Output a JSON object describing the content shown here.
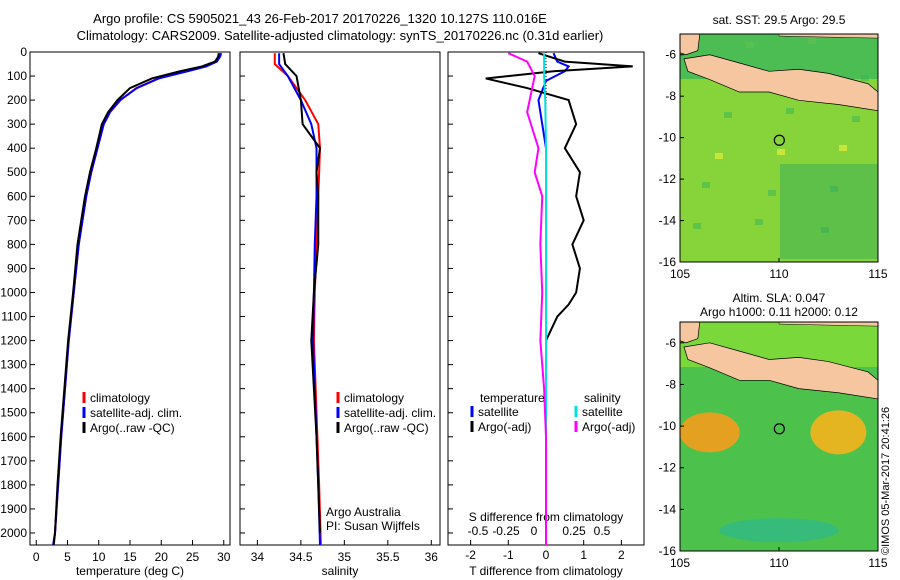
{
  "header": {
    "title_line1": "Argo profile: CS 5905021_43 26-Feb-2017 20170226_1320 10.127S 110.016E",
    "title_line2": "Climatology: CARS2009. Satellite-adjusted climatology: synTS_20170226.nc (0.31d earlier)"
  },
  "copyright": "©IMOS 05-Mar-2017 20:41:26",
  "colors": {
    "climatology": "#ff0000",
    "satellite": "#0000ff",
    "argo": "#000000",
    "sat_salinity": "#00e0e0",
    "argo_salinity": "#ff00ff",
    "land": "#f5c6a0"
  },
  "chart_data": [
    {
      "type": "line",
      "panel": "temperature",
      "xlabel": "temperature (deg C)",
      "ylabel": "",
      "xlim": [
        -1,
        31
      ],
      "ylim": [
        2050,
        0
      ],
      "xticks": [
        0,
        5,
        10,
        15,
        20,
        25,
        30
      ],
      "yticks": [
        0,
        100,
        200,
        300,
        400,
        500,
        600,
        700,
        800,
        900,
        1000,
        1100,
        1200,
        1300,
        1400,
        1500,
        1600,
        1700,
        1800,
        1900,
        2000
      ],
      "legend": [
        "climatology",
        "satellite-adj. clim.",
        "Argo(..raw -QC)"
      ],
      "legend_position": "lower-right",
      "series": [
        {
          "name": "climatology",
          "points": [
            [
              29.4,
              5
            ],
            [
              29.3,
              20
            ],
            [
              28.8,
              40
            ],
            [
              27.0,
              60
            ],
            [
              24.0,
              80
            ],
            [
              19.5,
              110
            ],
            [
              16.0,
              150
            ],
            [
              13.5,
              200
            ],
            [
              11.8,
              250
            ],
            [
              10.8,
              300
            ],
            [
              9.8,
              400
            ],
            [
              8.8,
              500
            ],
            [
              8.0,
              600
            ],
            [
              7.4,
              700
            ],
            [
              6.8,
              800
            ],
            [
              6.0,
              1000
            ],
            [
              5.2,
              1200
            ],
            [
              4.6,
              1400
            ],
            [
              4.0,
              1600
            ],
            [
              3.5,
              1800
            ],
            [
              3.0,
              2000
            ],
            [
              2.7,
              2050
            ]
          ]
        },
        {
          "name": "satellite-adj. clim.",
          "points": [
            [
              29.6,
              5
            ],
            [
              29.4,
              20
            ],
            [
              28.9,
              40
            ],
            [
              27.2,
              60
            ],
            [
              24.2,
              80
            ],
            [
              19.6,
              110
            ],
            [
              16.1,
              150
            ],
            [
              13.4,
              200
            ],
            [
              11.8,
              250
            ],
            [
              10.8,
              300
            ],
            [
              9.8,
              400
            ],
            [
              8.8,
              500
            ],
            [
              8.0,
              600
            ],
            [
              7.4,
              700
            ],
            [
              6.8,
              800
            ],
            [
              6.0,
              1000
            ],
            [
              5.2,
              1200
            ],
            [
              4.6,
              1400
            ],
            [
              4.0,
              1600
            ],
            [
              3.5,
              1800
            ],
            [
              3.0,
              2000
            ],
            [
              2.7,
              2050
            ]
          ]
        },
        {
          "name": "Argo(..raw -QC)",
          "points": [
            [
              29.2,
              5
            ],
            [
              29.1,
              20
            ],
            [
              28.6,
              40
            ],
            [
              26.5,
              60
            ],
            [
              23.0,
              80
            ],
            [
              18.5,
              110
            ],
            [
              15.0,
              150
            ],
            [
              13.0,
              200
            ],
            [
              11.5,
              250
            ],
            [
              10.5,
              300
            ],
            [
              9.6,
              400
            ],
            [
              8.6,
              500
            ],
            [
              7.8,
              600
            ],
            [
              7.2,
              700
            ],
            [
              6.6,
              800
            ],
            [
              5.9,
              1000
            ],
            [
              5.1,
              1200
            ],
            [
              4.5,
              1400
            ],
            [
              3.9,
              1600
            ],
            [
              3.4,
              1800
            ],
            [
              3.0,
              2000
            ],
            [
              2.8,
              2050
            ]
          ]
        }
      ]
    },
    {
      "type": "line",
      "panel": "salinity",
      "xlabel": "salinity",
      "ylabel": "",
      "xlim": [
        33.8,
        36.1
      ],
      "ylim": [
        2050,
        0
      ],
      "xticks": [
        34,
        34.5,
        35,
        35.5,
        36
      ],
      "legend": [
        "climatology",
        "satellite-adj. clim.",
        "Argo(..raw -QC)"
      ],
      "legend_position": "lower-right",
      "annotation": [
        "Argo Australia",
        "PI: Susan Wijffels"
      ],
      "series": [
        {
          "name": "climatology",
          "points": [
            [
              34.2,
              5
            ],
            [
              34.2,
              50
            ],
            [
              34.35,
              100
            ],
            [
              34.55,
              200
            ],
            [
              34.7,
              300
            ],
            [
              34.72,
              400
            ],
            [
              34.7,
              600
            ],
            [
              34.68,
              800
            ],
            [
              34.66,
              1000
            ],
            [
              34.65,
              1200
            ],
            [
              34.67,
              1400
            ],
            [
              34.69,
              1600
            ],
            [
              34.71,
              1800
            ],
            [
              34.73,
              2050
            ]
          ]
        },
        {
          "name": "satellite-adj. clim.",
          "points": [
            [
              34.25,
              5
            ],
            [
              34.25,
              50
            ],
            [
              34.35,
              100
            ],
            [
              34.5,
              200
            ],
            [
              34.62,
              300
            ],
            [
              34.68,
              400
            ],
            [
              34.68,
              600
            ],
            [
              34.66,
              800
            ],
            [
              34.65,
              1000
            ],
            [
              34.64,
              1200
            ],
            [
              34.66,
              1400
            ],
            [
              34.68,
              1600
            ],
            [
              34.7,
              1800
            ],
            [
              34.72,
              2050
            ]
          ]
        },
        {
          "name": "Argo(..raw -QC)",
          "points": [
            [
              34.3,
              5
            ],
            [
              34.32,
              50
            ],
            [
              34.45,
              100
            ],
            [
              34.5,
              200
            ],
            [
              34.52,
              300
            ],
            [
              34.72,
              400
            ],
            [
              34.68,
              500
            ],
            [
              34.7,
              600
            ],
            [
              34.7,
              700
            ],
            [
              34.7,
              800
            ],
            [
              34.65,
              1000
            ],
            [
              34.62,
              1200
            ],
            [
              34.65,
              1400
            ],
            [
              34.68,
              1600
            ],
            [
              34.7,
              1800
            ],
            [
              34.72,
              2000
            ]
          ]
        }
      ]
    },
    {
      "type": "line",
      "panel": "difference",
      "xlabel": "T difference from climatology",
      "xlabel_top": "S difference from climatology",
      "ylabel": "",
      "xlim": [
        -2.6,
        2.6
      ],
      "ylim": [
        2050,
        0
      ],
      "xticks": [
        -2,
        -1,
        0,
        1,
        2
      ],
      "xticks_s": [
        "-0.5",
        "-0.25",
        "0",
        "0.25",
        "0.5"
      ],
      "legend_left_title": "temperature",
      "legend_right_title": "salinity",
      "legend": [
        "satellite",
        "Argo(-adj)",
        "satellite",
        "Argo(-adj)"
      ],
      "legend_position": "lower-center",
      "series": [
        {
          "name": "satellite",
          "kind": "T",
          "points": [
            [
              0.2,
              5
            ],
            [
              0.3,
              40
            ],
            [
              0.6,
              60
            ],
            [
              0.5,
              80
            ],
            [
              0,
              120
            ],
            [
              -0.2,
              200
            ],
            [
              -0.1,
              300
            ],
            [
              0,
              400
            ],
            [
              0,
              600
            ],
            [
              0,
              1000
            ],
            [
              0,
              2050
            ]
          ]
        },
        {
          "name": "Argo(-adj)",
          "kind": "T",
          "points": [
            [
              -0.2,
              5
            ],
            [
              0.5,
              40
            ],
            [
              2.3,
              60
            ],
            [
              0.2,
              80
            ],
            [
              -1.6,
              110
            ],
            [
              -0.5,
              150
            ],
            [
              0.6,
              200
            ],
            [
              0.8,
              300
            ],
            [
              0.5,
              400
            ],
            [
              0.9,
              500
            ],
            [
              0.8,
              600
            ],
            [
              1.0,
              700
            ],
            [
              0.7,
              800
            ],
            [
              0.9,
              900
            ],
            [
              0.8,
              1000
            ],
            [
              0.6,
              1050
            ],
            [
              0.3,
              1100
            ],
            [
              0,
              1200
            ],
            [
              0,
              2050
            ]
          ]
        },
        {
          "name": "satellite",
          "kind": "S",
          "points": [
            [
              -0.05,
              5
            ],
            [
              -0.05,
              100
            ],
            [
              -0.02,
              200
            ],
            [
              0,
              400
            ],
            [
              0,
              2050
            ]
          ]
        },
        {
          "name": "Argo(-adj)",
          "kind": "S",
          "points": [
            [
              -1.0,
              5
            ],
            [
              -0.5,
              40
            ],
            [
              -0.4,
              70
            ],
            [
              -0.3,
              100
            ],
            [
              -0.5,
              250
            ],
            [
              -0.2,
              400
            ],
            [
              -0.3,
              500
            ],
            [
              -0.1,
              600
            ],
            [
              -0.15,
              800
            ],
            [
              -0.1,
              1000
            ],
            [
              -0.15,
              1200
            ],
            [
              -0.05,
              1400
            ],
            [
              0,
              1600
            ],
            [
              0,
              1800
            ],
            [
              0,
              2050
            ]
          ]
        }
      ]
    },
    {
      "type": "heatmap",
      "panel": "sst_map",
      "title": "sat. SST: 29.5 Argo: 29.5",
      "xlim": [
        105,
        115
      ],
      "ylim": [
        -16,
        -5
      ],
      "xticks": [
        105,
        110,
        115
      ],
      "yticks": [
        -6,
        -8,
        -10,
        -12,
        -14,
        -16
      ],
      "marker": [
        110.016,
        -10.127
      ]
    },
    {
      "type": "heatmap",
      "panel": "sla_map",
      "title": "Altim. SLA: 0.047",
      "subtitle": "Argo h1000: 0.11 h2000: 0.12",
      "xlim": [
        105,
        115
      ],
      "ylim": [
        -16,
        -5
      ],
      "xticks": [
        105,
        110,
        115
      ],
      "yticks": [
        -6,
        -8,
        -10,
        -12,
        -14,
        -16
      ],
      "marker": [
        110.016,
        -10.127
      ]
    }
  ]
}
